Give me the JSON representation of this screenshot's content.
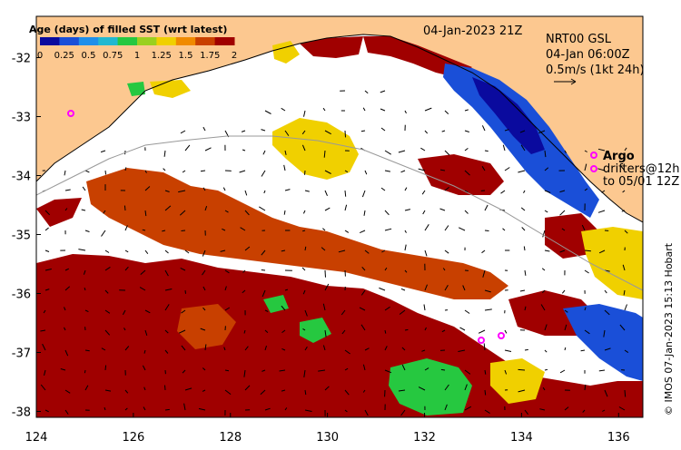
{
  "legend": {
    "title": "Age (days) of filled SST (wrt latest)",
    "ticks": [
      "0",
      "0.25",
      "0.5",
      "0.75",
      "1",
      "1.25",
      "1.5",
      "1.75",
      "2"
    ],
    "colors": [
      "#0a0a9e",
      "#1a4fd8",
      "#1f8fea",
      "#22b8d0",
      "#26c840",
      "#9ad020",
      "#f0d000",
      "#f08a00",
      "#c84000",
      "#a00000"
    ]
  },
  "datetime": "04-Jan-2023 21Z",
  "product": {
    "line1": "NRT00 GSL",
    "line2": "04-Jan 06:00Z",
    "line3": "0.5m/s (1kt 24h)"
  },
  "argo": {
    "label": "Argo",
    "drifters_line1": "drifters@12h",
    "drifters_line2": "to 05/01 12Z"
  },
  "credit": "© IMOS 07-Jan-2023 15:13 Hobart",
  "axes": {
    "x_ticks": [
      "124",
      "126",
      "128",
      "130",
      "132",
      "134",
      "136"
    ],
    "y_ticks": [
      "-32",
      "-33",
      "-34",
      "-35",
      "-36",
      "-37",
      "-38"
    ],
    "xlim": [
      124,
      136.5
    ],
    "ylim": [
      -38.1,
      -31.3
    ]
  },
  "colors": {
    "land": "#fcc890",
    "ocean": "#ffffff",
    "age_2": "#a00000",
    "age_175": "#c84000",
    "age_15": "#f0d000",
    "age_1": "#26c840",
    "age_0": "#0a0a9e",
    "age_025": "#1a4fd8",
    "argo": "#ff00ff"
  }
}
